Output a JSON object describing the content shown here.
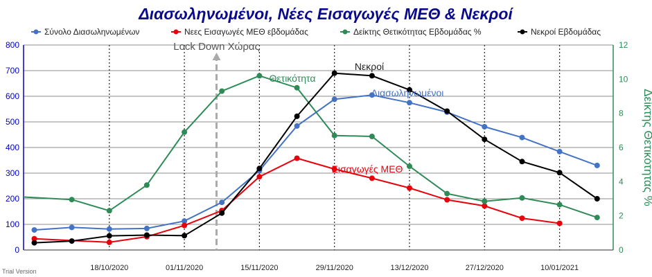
{
  "chart_data": {
    "type": "line",
    "title": "Διασωληνωμένοι, Νέες Εισαγωγές ΜΕΘ & Νεκροί",
    "x": [
      "2020-10-04",
      "2020-10-11",
      "2020-10-18",
      "2020-10-25",
      "2020-11-01",
      "2020-11-08",
      "2020-11-15",
      "2020-11-22",
      "2020-11-29",
      "2020-12-06",
      "2020-12-13",
      "2020-12-20",
      "2020-12-27",
      "2021-01-03",
      "2021-01-10",
      "2021-01-17"
    ],
    "x_tick_labels": [
      "18/10/2020",
      "01/11/2020",
      "15/11/2020",
      "29/11/2020",
      "13/12/2020",
      "27/12/2020",
      "10/01/2021"
    ],
    "x_tick_dates": [
      "2020-10-18",
      "2020-11-01",
      "2020-11-15",
      "2020-11-29",
      "2020-12-13",
      "2020-12-27",
      "2021-01-10"
    ],
    "xlim": [
      "2020-10-02",
      "2021-01-20"
    ],
    "ylim_left": [
      0,
      800
    ],
    "yticks_left": [
      "0",
      "100",
      "200",
      "300",
      "400",
      "500",
      "600",
      "700",
      "800"
    ],
    "ylim_right": [
      0,
      12
    ],
    "yticks_right": [
      "0",
      "2",
      "4",
      "6",
      "8",
      "10",
      "12"
    ],
    "ylabel_right": "Δείκτης Θετικότητας %",
    "legend_position": "top",
    "series": [
      {
        "name": "Σύνολο Διασωληνωμένων",
        "axis": "left",
        "color": "#4472c4",
        "values": [
          78,
          88,
          82,
          84,
          113,
          186,
          310,
          484,
          588,
          605,
          575,
          538,
          481,
          439,
          384,
          330
        ]
      },
      {
        "name": "Νεες Εισαγωγές ΜΕΘ εβδομάδας",
        "axis": "left",
        "color": "#e8000b",
        "values": [
          44,
          null,
          30,
          52,
          96,
          154,
          286,
          358,
          316,
          280,
          242,
          196,
          172,
          124,
          104,
          null
        ]
      },
      {
        "name": "Δείκτης Θετικότητας Εβδομάδας %",
        "axis": "right",
        "color": "#2e8b57",
        "leading_value": 3.1,
        "values": [
          null,
          2.95,
          2.3,
          3.8,
          6.9,
          9.3,
          10.2,
          9.5,
          6.7,
          6.65,
          4.9,
          3.3,
          2.85,
          3.05,
          2.65,
          1.9
        ]
      },
      {
        "name": "Νεκροί Εβδομάδας",
        "axis": "left",
        "color": "#000000",
        "values": [
          28,
          35,
          55,
          58,
          56,
          144,
          318,
          522,
          690,
          680,
          625,
          542,
          432,
          345,
          302,
          200
        ]
      }
    ],
    "annotations": [
      {
        "text": "Lock Down Χώρας",
        "x": "2020-11-07",
        "kind": "vertical-line",
        "color": "#aaaaaa"
      },
      {
        "text": "Θετικότητα",
        "color": "#2e8b57",
        "near_series": 2
      },
      {
        "text": "Νεκροί",
        "color": "#222222",
        "near_series": 3
      },
      {
        "text": "Διασωληνωμένοι",
        "color": "#4472c4",
        "near_series": 0
      },
      {
        "text": "Εισαγωγές ΜΕΘ",
        "color": "#e8000b",
        "near_series": 1
      }
    ],
    "grid": {
      "vertical_at_x_ticks": true,
      "horizontal": true
    }
  },
  "footer": {
    "watermark": "Trial Version"
  },
  "colors": {
    "left_axis": "#0000cc",
    "right_axis": "#2e8b57",
    "title": "#0a0a8c",
    "lockdown": "#aaaaaa"
  }
}
